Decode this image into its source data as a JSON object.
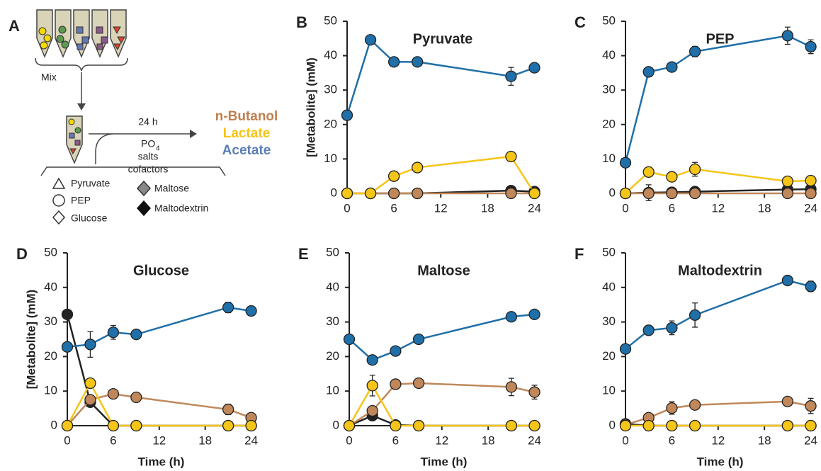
{
  "diagram": {
    "label": "A",
    "mix": "Mix",
    "time": "24 h",
    "reagent": {
      "main": "PO",
      "sub": "4"
    },
    "salts": "salts",
    "cofactors": "cofactors",
    "products": [
      {
        "name": "n-Butanol",
        "color": "#c0804f"
      },
      {
        "name": "Lactate",
        "color": "#f5c518"
      },
      {
        "name": "Acetate",
        "color": "#5b7fb5"
      }
    ],
    "legend": [
      "Pyruvate",
      "PEP",
      "Glucose",
      "Maltose",
      "Maltodextrin"
    ]
  },
  "chart_data": [
    {
      "type": "line",
      "label": "B",
      "title": "Pyruvate",
      "y_label": "[Metabolite] (mM)",
      "x": [
        0,
        3,
        6,
        9,
        21,
        24
      ],
      "xlim": [
        0,
        24.5
      ],
      "xticks": [
        0,
        6,
        12,
        18,
        24
      ],
      "ylim": [
        0,
        50
      ],
      "yticks": [
        0,
        10,
        20,
        30,
        40,
        50
      ],
      "series": [
        {
          "color": "#222222",
          "values": [
            0,
            0,
            0,
            0,
            0.8,
            0.5
          ],
          "errors": [
            0,
            0,
            0,
            0,
            0,
            0
          ]
        },
        {
          "name": "n-Butanol",
          "color": "#c0885a",
          "values": [
            0,
            0,
            0,
            0,
            0,
            0
          ],
          "errors": [
            0,
            0,
            0,
            0,
            0,
            0
          ]
        },
        {
          "name": "Lactate",
          "color": "#f5c518",
          "values": [
            0,
            0,
            5,
            7.5,
            10.7,
            0
          ],
          "errors": [
            0,
            0,
            0,
            0,
            1.2,
            0
          ]
        },
        {
          "name": "Acetate",
          "color": "#1f6fa8",
          "values": [
            22.7,
            44.6,
            38.2,
            38.2,
            34,
            36.5
          ],
          "errors": [
            0,
            0,
            0,
            0,
            2.6,
            0
          ]
        }
      ]
    },
    {
      "type": "line",
      "label": "C",
      "title": "PEP",
      "x": [
        0,
        3,
        6,
        9,
        21,
        24
      ],
      "xlim": [
        0,
        24.5
      ],
      "xticks": [
        0,
        6,
        12,
        18,
        24
      ],
      "ylim": [
        0,
        50
      ],
      "yticks": [
        0,
        10,
        20,
        30,
        40,
        50
      ],
      "series": [
        {
          "color": "#222222",
          "values": [
            0,
            0.2,
            0.3,
            0.5,
            1.1,
            1.2
          ],
          "errors": [
            0,
            2.3,
            0,
            0,
            0,
            0
          ]
        },
        {
          "name": "n-Butanol",
          "color": "#c0885a",
          "values": [
            0,
            0,
            0,
            0,
            0,
            0
          ],
          "errors": [
            0,
            0,
            0,
            0,
            0,
            0
          ]
        },
        {
          "name": "Lactate",
          "color": "#f5c518",
          "values": [
            0,
            6.2,
            4.8,
            7,
            3.5,
            3.7
          ],
          "errors": [
            0,
            0,
            0,
            2,
            0,
            0
          ]
        },
        {
          "name": "Acetate",
          "color": "#1f6fa8",
          "values": [
            8.9,
            35.3,
            36.7,
            41.2,
            45.8,
            42.6
          ],
          "errors": [
            0,
            1,
            0,
            1.5,
            2.5,
            2
          ]
        }
      ]
    },
    {
      "type": "line",
      "label": "D",
      "title": "Glucose",
      "y_label": "[Metabolite] (mM)",
      "x_label": "Time (h)",
      "x": [
        0,
        3,
        6,
        9,
        21,
        24
      ],
      "xlim": [
        0,
        24.5
      ],
      "xticks": [
        0,
        6,
        12,
        18,
        24
      ],
      "ylim": [
        0,
        50
      ],
      "yticks": [
        0,
        10,
        20,
        30,
        40,
        50
      ],
      "series": [
        {
          "color": "#222222",
          "values": [
            32.2,
            6.8,
            0,
            0,
            0,
            0
          ],
          "errors": [
            0,
            0,
            0,
            0,
            0,
            0
          ]
        },
        {
          "name": "n-Butanol",
          "color": "#c0885a",
          "values": [
            0,
            7.5,
            9.2,
            8.2,
            4.7,
            2.3
          ],
          "errors": [
            0,
            1,
            0,
            0,
            1.5,
            0
          ]
        },
        {
          "name": "Lactate",
          "color": "#f5c518",
          "values": [
            0,
            12.3,
            0,
            0,
            0,
            0
          ],
          "errors": [
            0,
            0,
            0,
            0,
            0,
            0
          ]
        },
        {
          "name": "Acetate",
          "color": "#1f6fa8",
          "values": [
            22.8,
            23.5,
            27,
            26.4,
            34.2,
            33.2
          ],
          "errors": [
            0,
            3.7,
            2,
            0,
            1.5,
            1.2
          ]
        }
      ]
    },
    {
      "type": "line",
      "label": "E",
      "title": "Maltose",
      "x_label": "Time (h)",
      "x": [
        0,
        3,
        6,
        9,
        21,
        24
      ],
      "xlim": [
        0,
        24.5
      ],
      "xticks": [
        0,
        6,
        12,
        18,
        24
      ],
      "ylim": [
        0,
        50
      ],
      "yticks": [
        0,
        10,
        20,
        30,
        40,
        50
      ],
      "series": [
        {
          "color": "#222222",
          "values": [
            0,
            2.9,
            0.2,
            0,
            0,
            0
          ],
          "errors": [
            0,
            0,
            0,
            0,
            0,
            0
          ]
        },
        {
          "name": "n-Butanol",
          "color": "#c0885a",
          "values": [
            0,
            4.3,
            12,
            12.3,
            11.2,
            9.7
          ],
          "errors": [
            0,
            0,
            0,
            0,
            2.5,
            2
          ]
        },
        {
          "name": "Lactate",
          "color": "#f5c518",
          "values": [
            0,
            11.6,
            0,
            0,
            0,
            0
          ],
          "errors": [
            0,
            3,
            0,
            0,
            0,
            0
          ]
        },
        {
          "name": "Acetate",
          "color": "#1f6fa8",
          "values": [
            25,
            19,
            21.6,
            25,
            31.5,
            32.2
          ],
          "errors": [
            0,
            0,
            0,
            0,
            0,
            0
          ]
        }
      ]
    },
    {
      "type": "line",
      "label": "F",
      "title": "Maltodextrin",
      "x_label": "Time (h)",
      "x": [
        0,
        3,
        6,
        9,
        21,
        24
      ],
      "xlim": [
        0,
        24.5
      ],
      "xticks": [
        0,
        6,
        12,
        18,
        24
      ],
      "ylim": [
        0,
        50
      ],
      "yticks": [
        0,
        10,
        20,
        30,
        40,
        50
      ],
      "series": [
        {
          "color": "#222222",
          "values": [
            0.5,
            0,
            0,
            0,
            0,
            0
          ],
          "errors": [
            0,
            0,
            0,
            0,
            0,
            0
          ]
        },
        {
          "name": "n-Butanol",
          "color": "#c0885a",
          "values": [
            0.3,
            2.3,
            5.1,
            6,
            7,
            5.7
          ],
          "errors": [
            0,
            0,
            1.8,
            0,
            1.3,
            2.2
          ]
        },
        {
          "name": "Lactate",
          "color": "#f5c518",
          "values": [
            0,
            0,
            0,
            0,
            0,
            0
          ],
          "errors": [
            0,
            0,
            0,
            0,
            0,
            0
          ]
        },
        {
          "name": "Acetate",
          "color": "#1f6fa8",
          "values": [
            22.2,
            27.6,
            28.3,
            32,
            42,
            40.3
          ],
          "errors": [
            0,
            0,
            2,
            3.5,
            0,
            1.5
          ]
        }
      ]
    }
  ]
}
